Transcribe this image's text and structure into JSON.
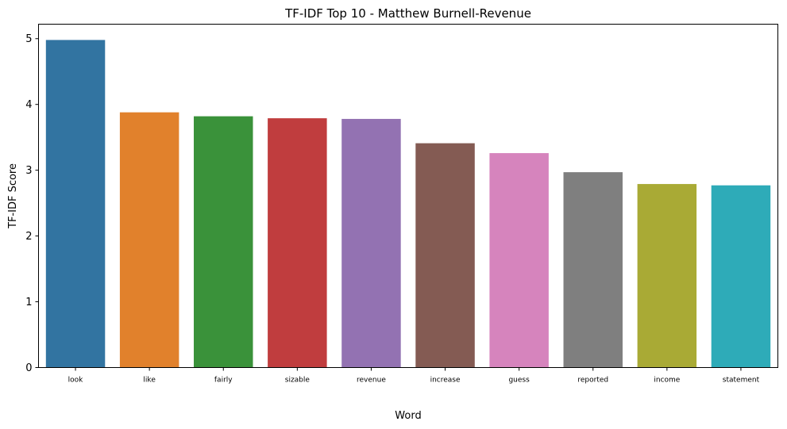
{
  "chart_data": {
    "type": "bar",
    "title": "TF-IDF Top 10 - Matthew Burnell-Revenue",
    "xlabel": "Word",
    "ylabel": "TF-IDF Score",
    "categories": [
      "look",
      "like",
      "fairly",
      "sizable",
      "revenue",
      "increase",
      "guess",
      "reported",
      "income",
      "statement"
    ],
    "values": [
      4.98,
      3.88,
      3.82,
      3.79,
      3.78,
      3.41,
      3.26,
      2.97,
      2.79,
      2.77
    ],
    "colors": [
      "#3274a1",
      "#e1812c",
      "#3a923a",
      "#c03d3e",
      "#9372b2",
      "#845b53",
      "#d684bd",
      "#7f7f7f",
      "#a9aa35",
      "#2eabb8"
    ],
    "ylim": [
      0,
      5.22
    ],
    "yticks": [
      0,
      1,
      2,
      3,
      4,
      5
    ],
    "grid": false,
    "legend": "none"
  }
}
